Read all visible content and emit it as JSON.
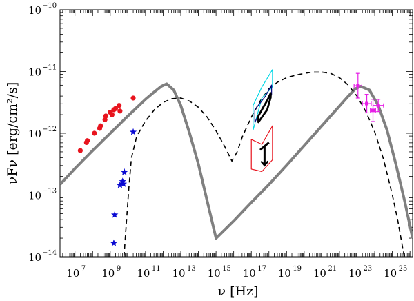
{
  "chart_data": {
    "type": "scatter",
    "title": "",
    "xlabel": "ν [Hz]",
    "ylabel": "νFν [erg/cm²/s]",
    "xscale": "log",
    "yscale": "log",
    "xlim_log10": [
      6.15,
      26.15
    ],
    "ylim_log10": [
      -14,
      -10
    ],
    "x_ticks": [
      {
        "log": 7,
        "label": "10",
        "exp": "7"
      },
      {
        "log": 9,
        "label": "10",
        "exp": "9"
      },
      {
        "log": 11,
        "label": "10",
        "exp": "11"
      },
      {
        "log": 13,
        "label": "10",
        "exp": "13"
      },
      {
        "log": 15,
        "label": "10",
        "exp": "15"
      },
      {
        "log": 17,
        "label": "10",
        "exp": "17"
      },
      {
        "log": 19,
        "label": "10",
        "exp": "19"
      },
      {
        "log": 21,
        "label": "10",
        "exp": "21"
      },
      {
        "log": 23,
        "label": "10",
        "exp": "23"
      },
      {
        "log": 25,
        "label": "10",
        "exp": "25"
      }
    ],
    "y_ticks": [
      {
        "log": -14,
        "label": "10",
        "exp": "−14"
      },
      {
        "log": -13,
        "label": "10",
        "exp": "−13"
      },
      {
        "log": -12,
        "label": "10",
        "exp": "−12"
      },
      {
        "log": -11,
        "label": "10",
        "exp": "−11"
      },
      {
        "log": -10,
        "label": "10",
        "exp": "−10"
      }
    ],
    "colors": {
      "model_solid": "#808080",
      "model_dashed": "#000000",
      "red_points": "#e8141e",
      "blue_stars": "#0a0ad2",
      "magenta_points": "#e61ee6",
      "xray_cyan": "#00d7e6",
      "xray_navy": "#0a0a80",
      "xray_red": "#e8141e",
      "xray_black": "#000000"
    },
    "series": [
      {
        "name": "model-solid",
        "kind": "line",
        "style": "solid",
        "log_nu": [
          6.15,
          7.0,
          8.0,
          9.0,
          10.0,
          11.0,
          11.5,
          11.9,
          12.2,
          12.6,
          13.0,
          13.5,
          14.0,
          14.5,
          15.0,
          16.0,
          17.0,
          18.0,
          19.0,
          20.0,
          21.0,
          22.0,
          22.5,
          22.9,
          23.2,
          23.7,
          24.2,
          24.7,
          25.2,
          25.7,
          26.15
        ],
        "log_flux": [
          -12.83,
          -12.57,
          -12.28,
          -12.0,
          -11.72,
          -11.45,
          -11.33,
          -11.24,
          -11.2,
          -11.3,
          -11.55,
          -12.0,
          -12.5,
          -13.1,
          -13.7,
          -13.42,
          -13.12,
          -12.83,
          -12.52,
          -12.2,
          -11.88,
          -11.56,
          -11.4,
          -11.28,
          -11.24,
          -11.3,
          -11.55,
          -11.95,
          -12.5,
          -13.1,
          -13.7
        ]
      },
      {
        "name": "model-dashed",
        "kind": "line",
        "style": "dashed",
        "log_nu": [
          9.78,
          9.85,
          9.95,
          10.05,
          10.2,
          10.5,
          11.0,
          11.5,
          12.0,
          12.5,
          13.0,
          13.5,
          14.0,
          14.5,
          15.0,
          15.5,
          15.9,
          16.2,
          16.5,
          17.0,
          17.5,
          18.0,
          18.5,
          19.0,
          19.5,
          20.0,
          20.5,
          21.0,
          21.5,
          22.0,
          22.5,
          23.0,
          23.5,
          24.0,
          24.5,
          25.0,
          25.3,
          25.5,
          25.6,
          25.7
        ],
        "log_flux": [
          -14.0,
          -13.7,
          -13.3,
          -12.9,
          -12.4,
          -12.05,
          -11.8,
          -11.62,
          -11.5,
          -11.44,
          -11.43,
          -11.48,
          -11.58,
          -11.74,
          -11.96,
          -12.22,
          -12.45,
          -12.3,
          -12.05,
          -11.74,
          -11.48,
          -11.28,
          -11.17,
          -11.1,
          -11.06,
          -11.03,
          -11.01,
          -11.01,
          -11.03,
          -11.1,
          -11.22,
          -11.4,
          -11.65,
          -11.98,
          -12.42,
          -13.0,
          -13.4,
          -13.72,
          -13.88,
          -14.0
        ]
      },
      {
        "name": "radio-points",
        "kind": "points",
        "marker": "circle",
        "log_nu": [
          7.3,
          7.65,
          7.7,
          8.1,
          8.4,
          8.45,
          8.7,
          8.75,
          9.0,
          9.1,
          9.2,
          9.3,
          9.5,
          9.55,
          10.3
        ],
        "log_flux": [
          -12.28,
          -12.15,
          -12.12,
          -12.0,
          -11.92,
          -11.88,
          -11.78,
          -11.72,
          -11.66,
          -11.7,
          -11.62,
          -11.6,
          -11.55,
          -11.64,
          -11.43
        ]
      },
      {
        "name": "optical-stars",
        "kind": "points",
        "marker": "star",
        "log_nu": [
          9.2,
          9.25,
          9.55,
          9.7,
          9.75,
          9.8,
          10.3
        ],
        "log_flux": [
          -13.78,
          -13.32,
          -12.84,
          -12.78,
          -12.82,
          -12.63,
          -11.98
        ]
      },
      {
        "name": "gamma-points",
        "kind": "points",
        "marker": "errorbar",
        "log_nu": [
          23.05,
          23.55,
          23.9,
          24.2
        ],
        "log_flux": [
          -11.23,
          -11.52,
          -11.63,
          -11.55
        ],
        "log_flux_err": [
          0.2,
          0.15,
          0.18,
          0.1
        ],
        "log_nu_err": [
          0.22,
          0.25,
          0.15,
          0.3
        ]
      },
      {
        "name": "xray-cyan-bowtie",
        "kind": "bowtie",
        "polygon": [
          [
            17.1,
            -11.55
          ],
          [
            17.6,
            -11.25
          ],
          [
            18.2,
            -10.97
          ],
          [
            18.2,
            -11.25
          ],
          [
            17.6,
            -11.43
          ],
          [
            17.1,
            -11.95
          ]
        ]
      },
      {
        "name": "xray-navy-bowtie",
        "kind": "bowtie",
        "polygon": [
          [
            17.2,
            -11.62
          ],
          [
            17.8,
            -11.4
          ],
          [
            18.15,
            -11.22
          ],
          [
            18.15,
            -11.38
          ],
          [
            17.7,
            -11.55
          ],
          [
            17.2,
            -11.82
          ]
        ]
      },
      {
        "name": "xray-black-bowtie",
        "kind": "bowtie",
        "polygon": [
          [
            17.4,
            -11.72
          ],
          [
            17.9,
            -11.47
          ],
          [
            18.1,
            -11.35
          ],
          [
            18.1,
            -11.42
          ],
          [
            17.9,
            -11.62
          ],
          [
            17.4,
            -11.82
          ]
        ]
      },
      {
        "name": "xray-red-bowtie",
        "kind": "bowtie",
        "polygon": [
          [
            17.0,
            -12.1
          ],
          [
            17.6,
            -12.18
          ],
          [
            18.2,
            -11.88
          ],
          [
            18.2,
            -12.43
          ],
          [
            17.6,
            -12.62
          ],
          [
            17.0,
            -12.58
          ]
        ]
      },
      {
        "name": "xray-black-arrow",
        "kind": "upper-limit",
        "bar": [
          [
            17.5,
            -12.27
          ],
          [
            18.0,
            -12.15
          ]
        ],
        "from": [
          17.75,
          -12.2
        ],
        "to": [
          17.75,
          -12.52
        ]
      }
    ]
  }
}
